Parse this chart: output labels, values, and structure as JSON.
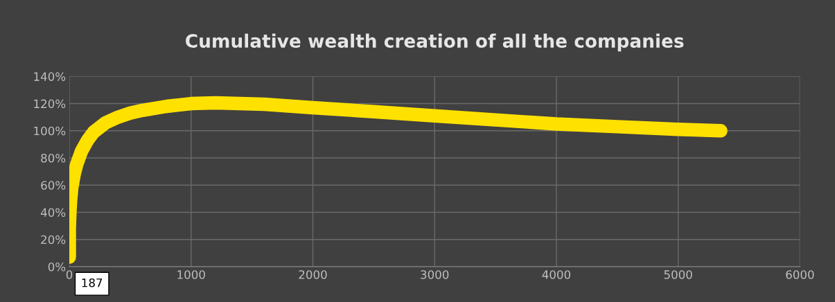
{
  "chart_data": {
    "type": "line",
    "title": "Cumulative wealth creation of all the companies",
    "x": [
      0,
      0,
      0,
      0,
      0,
      2,
      5,
      10,
      20,
      40,
      60,
      100,
      150,
      200,
      300,
      400,
      500,
      600,
      800,
      1000,
      1200,
      1400,
      1600,
      2000,
      2500,
      3000,
      3500,
      4000,
      4500,
      5000,
      5350
    ],
    "series": [
      {
        "color": "#ffe100",
        "values": [
          7,
          13,
          18,
          23,
          28,
          33,
          40,
          48,
          58,
          68,
          75,
          85,
          93,
          99,
          106,
          110,
          113,
          115,
          118,
          120,
          120.5,
          120,
          119.5,
          117,
          114,
          111,
          108,
          105,
          103,
          101,
          100
        ]
      }
    ],
    "line_style": "solid",
    "grid": true,
    "legend": false,
    "xlim": [
      0,
      6000
    ],
    "xticks": [
      0,
      1000,
      2000,
      3000,
      4000,
      5000,
      6000
    ],
    "ylim": [
      0,
      140
    ],
    "yticks": [
      {
        "value": 0,
        "label": "0%"
      },
      {
        "value": 20,
        "label": "20%"
      },
      {
        "value": 40,
        "label": "40%"
      },
      {
        "value": 60,
        "label": "60%"
      },
      {
        "value": 80,
        "label": "80%"
      },
      {
        "value": 100,
        "label": "100%"
      },
      {
        "value": 120,
        "label": "120%"
      },
      {
        "value": 140,
        "label": "140%"
      }
    ],
    "annotations": [
      "187"
    ]
  }
}
